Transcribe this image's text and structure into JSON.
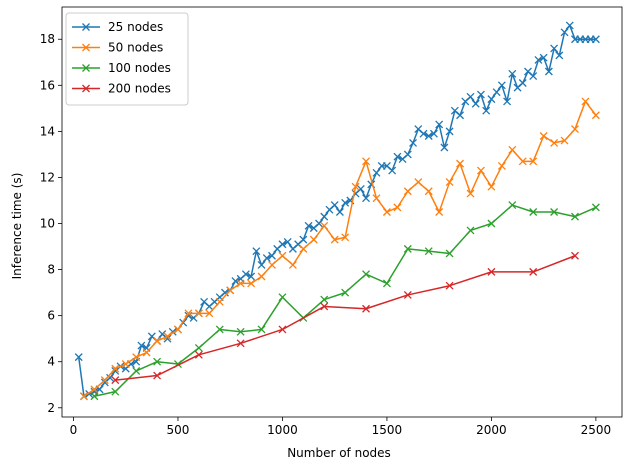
{
  "chart_data": {
    "type": "line",
    "title": "",
    "xlabel": "Number of nodes",
    "ylabel": "Inference time (s)",
    "xlim": [
      -55,
      2625
    ],
    "ylim": [
      1.6,
      19.4
    ],
    "xticks": [
      0,
      500,
      1000,
      1500,
      2000,
      2500
    ],
    "yticks": [
      2,
      4,
      6,
      8,
      10,
      12,
      14,
      16,
      18
    ],
    "legend_position": "top-left",
    "grid": false,
    "series": [
      {
        "name": "25 nodes",
        "color": "#1f77b4",
        "marker": "x",
        "x": [
          25,
          50,
          75,
          100,
          125,
          150,
          175,
          200,
          225,
          250,
          275,
          300,
          325,
          350,
          375,
          400,
          425,
          450,
          475,
          500,
          525,
          550,
          575,
          600,
          625,
          650,
          675,
          700,
          725,
          750,
          775,
          800,
          825,
          850,
          875,
          900,
          925,
          950,
          975,
          1000,
          1025,
          1050,
          1075,
          1100,
          1125,
          1150,
          1175,
          1200,
          1225,
          1250,
          1275,
          1300,
          1325,
          1350,
          1375,
          1400,
          1425,
          1450,
          1475,
          1500,
          1525,
          1550,
          1575,
          1600,
          1625,
          1650,
          1675,
          1700,
          1725,
          1750,
          1775,
          1800,
          1825,
          1850,
          1875,
          1900,
          1925,
          1950,
          1975,
          2000,
          2025,
          2050,
          2075,
          2100,
          2125,
          2150,
          2175,
          2200,
          2225,
          2250,
          2275,
          2300,
          2325,
          2350,
          2375,
          2400,
          2425,
          2450,
          2475,
          2500
        ],
        "y": [
          4.2,
          2.5,
          2.6,
          2.7,
          2.8,
          3.1,
          3.3,
          3.6,
          3.8,
          3.7,
          3.9,
          4.0,
          4.7,
          4.6,
          5.1,
          4.9,
          5.2,
          5.0,
          5.3,
          5.4,
          5.7,
          6.0,
          5.9,
          6.1,
          6.6,
          6.4,
          6.6,
          6.8,
          7.0,
          7.1,
          7.5,
          7.6,
          7.8,
          7.7,
          8.8,
          8.2,
          8.5,
          8.6,
          8.9,
          9.1,
          9.2,
          8.9,
          9.1,
          9.3,
          9.9,
          9.8,
          10.0,
          10.3,
          10.6,
          10.8,
          10.5,
          10.9,
          11.0,
          11.3,
          11.5,
          11.1,
          11.7,
          12.2,
          12.5,
          12.5,
          12.3,
          12.9,
          12.8,
          13.0,
          13.5,
          14.1,
          13.9,
          13.8,
          13.9,
          14.3,
          13.3,
          14.0,
          14.9,
          14.7,
          15.3,
          15.5,
          15.2,
          15.6,
          14.9,
          15.4,
          15.7,
          16.0,
          15.3,
          16.5,
          15.9,
          16.1,
          16.6,
          16.4,
          17.1,
          17.2,
          16.6,
          17.6,
          17.3,
          18.3,
          18.6,
          18.0,
          18.0,
          18.0,
          18.0,
          18.0
        ]
      },
      {
        "name": "50 nodes",
        "color": "#ff7f0e",
        "marker": "x",
        "x": [
          50,
          100,
          150,
          200,
          250,
          300,
          350,
          400,
          450,
          500,
          550,
          600,
          650,
          700,
          750,
          800,
          850,
          900,
          950,
          1000,
          1050,
          1100,
          1150,
          1200,
          1250,
          1300,
          1350,
          1400,
          1450,
          1500,
          1550,
          1600,
          1650,
          1700,
          1750,
          1800,
          1850,
          1900,
          1950,
          2000,
          2050,
          2100,
          2150,
          2200,
          2250,
          2300,
          2350,
          2400,
          2450,
          2500
        ],
        "y": [
          2.5,
          2.8,
          3.2,
          3.7,
          3.9,
          4.2,
          4.4,
          4.9,
          5.1,
          5.4,
          6.1,
          6.1,
          6.1,
          6.6,
          7.1,
          7.4,
          7.4,
          7.7,
          8.2,
          8.6,
          8.2,
          8.9,
          9.3,
          9.9,
          9.3,
          9.4,
          11.6,
          12.7,
          11.1,
          10.5,
          10.7,
          11.4,
          11.8,
          11.4,
          10.5,
          11.8,
          12.6,
          11.3,
          12.3,
          11.6,
          12.5,
          13.2,
          12.7,
          12.7,
          13.8,
          13.5,
          13.6,
          14.1,
          15.3,
          14.7
        ]
      },
      {
        "name": "100 nodes",
        "color": "#2ca02c",
        "marker": "x",
        "x": [
          100,
          200,
          300,
          400,
          500,
          600,
          700,
          800,
          900,
          1000,
          1100,
          1200,
          1300,
          1400,
          1500,
          1600,
          1700,
          1800,
          1900,
          2000,
          2100,
          2200,
          2300,
          2400,
          2500
        ],
        "y": [
          2.5,
          2.7,
          3.6,
          4.0,
          3.9,
          4.6,
          5.4,
          5.3,
          5.4,
          6.8,
          5.9,
          6.7,
          7.0,
          7.8,
          7.4,
          8.9,
          8.8,
          8.7,
          9.7,
          10.0,
          10.8,
          10.5,
          10.5,
          10.3,
          10.7
        ]
      },
      {
        "name": "200 nodes",
        "color": "#d62728",
        "marker": "x",
        "x": [
          200,
          400,
          600,
          800,
          1000,
          1200,
          1400,
          1600,
          1800,
          2000,
          2200,
          2400
        ],
        "y": [
          3.2,
          3.4,
          4.3,
          4.8,
          5.4,
          6.4,
          6.3,
          6.9,
          7.3,
          7.9,
          7.9,
          8.6
        ]
      }
    ]
  }
}
